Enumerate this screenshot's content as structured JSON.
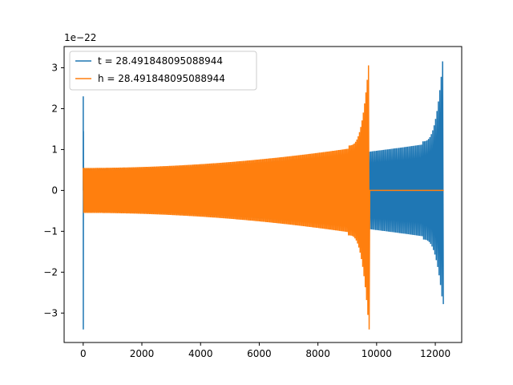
{
  "chart_data": {
    "type": "line",
    "title": "",
    "xlabel": "",
    "ylabel": "",
    "y_offset_text": "1e−22",
    "xlim": [
      -650,
      12900
    ],
    "ylim": [
      -3.72,
      3.52
    ],
    "x_ticks": [
      0,
      2000,
      4000,
      6000,
      8000,
      10000,
      12000
    ],
    "x_tick_labels": [
      "0",
      "2000",
      "4000",
      "6000",
      "8000",
      "10000",
      "12000"
    ],
    "y_ticks": [
      -3,
      -2,
      -1,
      0,
      1,
      2,
      3
    ],
    "y_tick_labels": [
      "−3",
      "−2",
      "−1",
      "0",
      "1",
      "2",
      "3"
    ],
    "grid": false,
    "legend_position": "upper-left",
    "series": [
      {
        "name": "t = 28.491848095088944",
        "color": "#1f77b4",
        "x_range": [
          0,
          12290
        ],
        "segments": [
          {
            "x0": 0,
            "x1": 10,
            "amp_start": 1.45,
            "amp_end": 3.4,
            "pos_peak": 2.3,
            "neg_peak": -3.4
          },
          {
            "x0": 10,
            "x1": 12290,
            "amp_start": 0.52,
            "amp_end": 1.2,
            "pos_peak": 3.2,
            "neg_peak": -2.78,
            "peak_x": 12255
          }
        ]
      },
      {
        "name": "h = 28.491848095088944",
        "color": "#ff7f0e",
        "x_range": [
          0,
          12290
        ],
        "segments": [
          {
            "x0": 0,
            "x1": 9765,
            "amp_start": 0.55,
            "amp_end": 1.1,
            "pos_peak": 3.2,
            "neg_peak": -3.4,
            "peak_x": 9740
          },
          {
            "x0": 9765,
            "x1": 12290,
            "amp_start": 0,
            "amp_end": 0
          }
        ]
      }
    ]
  }
}
